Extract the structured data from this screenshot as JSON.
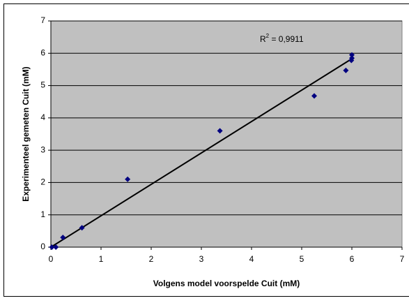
{
  "chart_data": {
    "type": "scatter",
    "x_label": "Volgens model voorspelde Cuit (mM)",
    "y_label": "Experimenteel gemeten Cuit (mM)",
    "annotation": {
      "base": "R",
      "sup": "2",
      "rest": " = 0,9911"
    },
    "series": [
      {
        "name": "Cuit",
        "color": "#000080",
        "x": [
          0.02,
          0.1,
          0.24,
          0.62,
          1.53,
          3.37,
          5.25,
          5.88,
          5.99,
          6.0,
          6.0
        ],
        "values": [
          0,
          0,
          0.3,
          0.6,
          2.1,
          3.6,
          4.68,
          5.47,
          5.78,
          5.85,
          5.95
        ]
      }
    ],
    "trendline": {
      "color": "#000000",
      "x": [
        0,
        6
      ],
      "values": [
        0,
        5.83
      ]
    },
    "xlim": [
      0,
      7
    ],
    "xticks": [
      0,
      1,
      2,
      3,
      4,
      5,
      6,
      7
    ],
    "ylim": [
      0,
      7
    ],
    "yticks": [
      0,
      1,
      2,
      3,
      4,
      5,
      6,
      7
    ],
    "grid": true
  }
}
